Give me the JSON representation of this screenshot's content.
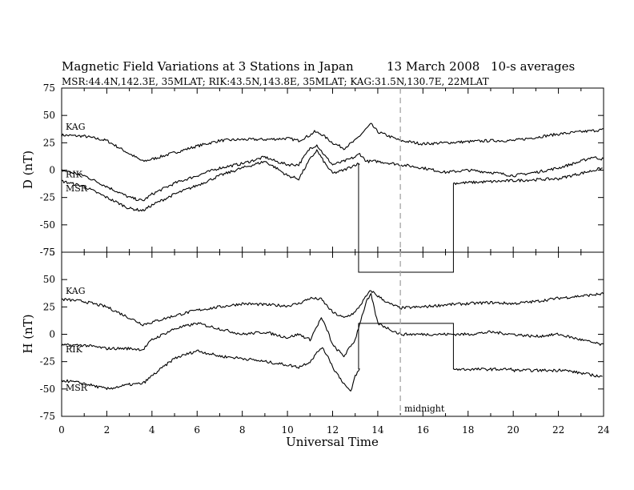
{
  "title": "Magnetic Field Variations at 3 Stations in Japan",
  "date": "13 March   2008",
  "cadence": "10-s averages",
  "subtitle": "MSR:44.4N,142.3E, 35MLAT;  RIK:43.5N,143.8E, 35MLAT;  KAG:31.5N,130.7E, 22MLAT",
  "colors": {
    "line": "#000000",
    "midnight_line": "#aaaaaa",
    "background": "#ffffff"
  },
  "chart_data": {
    "type": "line",
    "xlabel": "Universal Time",
    "xlim": [
      0,
      24
    ],
    "xticks": [
      0,
      2,
      4,
      6,
      8,
      10,
      12,
      14,
      16,
      18,
      20,
      22,
      24
    ],
    "midnight_ut": 15,
    "midnight_label": "midnight",
    "panels": [
      {
        "ylabel": "D (nT)",
        "ylim": [
          -75,
          75
        ],
        "yticks": [
          -75,
          -50,
          -25,
          0,
          25,
          50,
          75
        ],
        "series": [
          {
            "name": "KAG",
            "x": [
              0,
              1,
              2,
              3,
              3.6,
              4,
              5,
              6,
              7,
              8,
              9,
              10,
              10.5,
              11,
              11.2,
              11.5,
              12,
              12.5,
              13,
              13.5,
              13.7,
              14,
              15,
              16,
              17,
              18,
              19,
              20,
              21,
              22,
              23,
              24
            ],
            "values": [
              32,
              31,
              27,
              15,
              8,
              10,
              16,
              22,
              27,
              28,
              28,
              29,
              27,
              32,
              35,
              33,
              25,
              20,
              27,
              38,
              42,
              35,
              27,
              24,
              25,
              26,
              27,
              27,
              30,
              33,
              35,
              37
            ]
          },
          {
            "name": "RIK",
            "x": [
              0,
              1,
              2,
              3,
              3.6,
              4,
              5,
              6,
              7,
              8,
              9,
              9.5,
              10,
              10.5,
              11,
              11.3,
              11.7,
              12,
              12.5,
              13,
              13.2,
              13.5,
              14,
              15,
              16,
              17,
              18,
              19,
              20,
              21,
              22,
              23,
              23.5,
              24
            ],
            "values": [
              0,
              -5,
              -15,
              -25,
              -28,
              -22,
              -12,
              -5,
              2,
              6,
              12,
              8,
              5,
              5,
              20,
              23,
              12,
              5,
              8,
              12,
              15,
              8,
              8,
              5,
              2,
              -2,
              0,
              -2,
              -5,
              -2,
              2,
              8,
              12,
              10
            ]
          },
          {
            "name": "MSR",
            "x": [
              0,
              1,
              2,
              3,
              3.6,
              4,
              5,
              6,
              7,
              8,
              9,
              9.5,
              10,
              10.5,
              11,
              11.3,
              11.7,
              12,
              12.5,
              13,
              13.2
            ],
            "values": [
              -10,
              -15,
              -25,
              -35,
              -37,
              -32,
              -22,
              -14,
              -5,
              2,
              8,
              2,
              -5,
              -8,
              10,
              18,
              5,
              -3,
              0,
              5,
              6
            ]
          }
        ]
      },
      {
        "ylabel": "H (nT)",
        "ylim": [
          -75,
          75
        ],
        "yticks": [
          -75,
          -50,
          -25,
          0,
          25,
          50,
          75
        ],
        "series": [
          {
            "name": "KAG",
            "x": [
              0,
              1,
              2,
              3,
              3.6,
              4,
              5,
              6,
              7,
              8,
              9,
              10,
              10.5,
              11,
              11.5,
              12,
              12.5,
              13,
              13.5,
              13.7,
              14,
              14.5,
              15,
              16,
              17,
              18,
              19,
              20,
              21,
              22,
              23,
              24
            ],
            "values": [
              32,
              30,
              25,
              15,
              9,
              11,
              17,
              22,
              25,
              28,
              27,
              26,
              28,
              33,
              32,
              20,
              15,
              20,
              35,
              40,
              35,
              28,
              24,
              25,
              27,
              28,
              29,
              28,
              30,
              33,
              35,
              37
            ]
          },
          {
            "name": "RIK",
            "x": [
              0,
              1,
              2,
              3,
              3.6,
              4,
              5,
              6,
              7,
              8,
              9,
              10,
              10.5,
              11,
              11.5,
              11.8,
              12,
              12.5,
              13,
              13.2,
              13.5,
              13.7,
              14,
              14.5,
              15,
              16,
              17,
              18,
              19,
              20,
              21,
              22,
              23,
              24
            ],
            "values": [
              -10,
              -10,
              -13,
              -13,
              -14,
              -5,
              5,
              10,
              5,
              0,
              2,
              -3,
              0,
              -5,
              15,
              2,
              -10,
              -20,
              -5,
              10,
              30,
              36,
              10,
              5,
              0,
              0,
              0,
              0,
              2,
              0,
              -2,
              0,
              -5,
              -10
            ]
          },
          {
            "name": "MSR",
            "x": [
              0,
              1,
              2,
              3,
              3.6,
              4,
              5,
              6,
              7,
              8,
              9,
              10,
              10.5,
              11,
              11.5,
              11.8,
              12,
              12.5,
              12.8,
              13,
              13.2
            ],
            "values": [
              -42,
              -45,
              -50,
              -46,
              -45,
              -38,
              -22,
              -15,
              -20,
              -22,
              -25,
              -28,
              -30,
              -25,
              -12,
              -20,
              -30,
              -45,
              -53,
              -38,
              -32
            ]
          }
        ]
      }
    ],
    "offscale_segment": {
      "D": {
        "start": 13.15,
        "end": 17.35,
        "drop_from": 6,
        "rejoin_at": -12
      },
      "H": {
        "start": 13.15,
        "end": 17.35,
        "drop_from": -32,
        "rejoin_at": -32
      }
    }
  }
}
